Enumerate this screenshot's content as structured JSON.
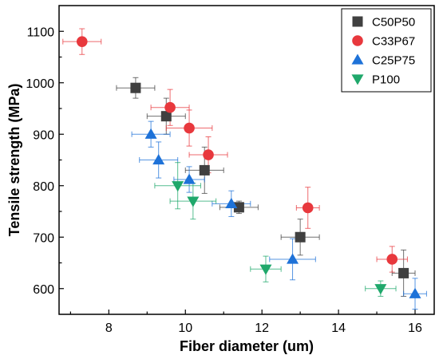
{
  "chart_data": {
    "type": "scatter",
    "title": "",
    "xlabel": "Fiber diameter (um)",
    "ylabel": "Tensile strength (MPa)",
    "xlim": [
      6.7,
      16.5
    ],
    "ylim": [
      550,
      1150
    ],
    "xticks": [
      8,
      10,
      12,
      14,
      16
    ],
    "yticks": [
      600,
      700,
      800,
      900,
      1000,
      1100
    ],
    "grid": false,
    "legend_position": "top-right",
    "series": [
      {
        "name": "C50P50",
        "marker": "square",
        "color": "#404040",
        "points": [
          {
            "x": 8.7,
            "y": 990,
            "xerr": 0.5,
            "yerr": 20
          },
          {
            "x": 9.5,
            "y": 935,
            "xerr": 0.5,
            "yerr": 35
          },
          {
            "x": 10.5,
            "y": 830,
            "xerr": 0.5,
            "yerr": 45
          },
          {
            "x": 11.4,
            "y": 758,
            "xerr": 0.5,
            "yerr": 12
          },
          {
            "x": 13.0,
            "y": 700,
            "xerr": 0.5,
            "yerr": 35
          },
          {
            "x": 15.7,
            "y": 630,
            "xerr": 0.3,
            "yerr": 45
          }
        ]
      },
      {
        "name": "C33P67",
        "marker": "circle",
        "color": "#e8383d",
        "points": [
          {
            "x": 7.3,
            "y": 1080,
            "xerr": 0.5,
            "yerr": 25
          },
          {
            "x": 9.6,
            "y": 952,
            "xerr": 0.5,
            "yerr": 35
          },
          {
            "x": 10.1,
            "y": 912,
            "xerr": 0.6,
            "yerr": 35
          },
          {
            "x": 10.6,
            "y": 860,
            "xerr": 0.5,
            "yerr": 35
          },
          {
            "x": 13.2,
            "y": 757,
            "xerr": 0.3,
            "yerr": 40
          },
          {
            "x": 15.4,
            "y": 657,
            "xerr": 0.4,
            "yerr": 25
          }
        ]
      },
      {
        "name": "C25P75",
        "marker": "triangle-up",
        "color": "#1e72d8",
        "points": [
          {
            "x": 9.1,
            "y": 900,
            "xerr": 0.5,
            "yerr": 25
          },
          {
            "x": 9.3,
            "y": 850,
            "xerr": 0.5,
            "yerr": 35
          },
          {
            "x": 10.1,
            "y": 812,
            "xerr": 0.4,
            "yerr": 25
          },
          {
            "x": 11.2,
            "y": 765,
            "xerr": 0.5,
            "yerr": 25
          },
          {
            "x": 12.8,
            "y": 657,
            "xerr": 0.6,
            "yerr": 40
          },
          {
            "x": 16.0,
            "y": 590,
            "xerr": 0.3,
            "yerr": 30
          }
        ]
      },
      {
        "name": "P100",
        "marker": "triangle-down",
        "color": "#1fa86b",
        "points": [
          {
            "x": 9.8,
            "y": 800,
            "xerr": 0.6,
            "yerr": 45
          },
          {
            "x": 10.2,
            "y": 770,
            "xerr": 0.6,
            "yerr": 35
          },
          {
            "x": 12.1,
            "y": 638,
            "xerr": 0.4,
            "yerr": 25
          },
          {
            "x": 15.1,
            "y": 600,
            "xerr": 0.4,
            "yerr": 15
          }
        ]
      }
    ]
  }
}
